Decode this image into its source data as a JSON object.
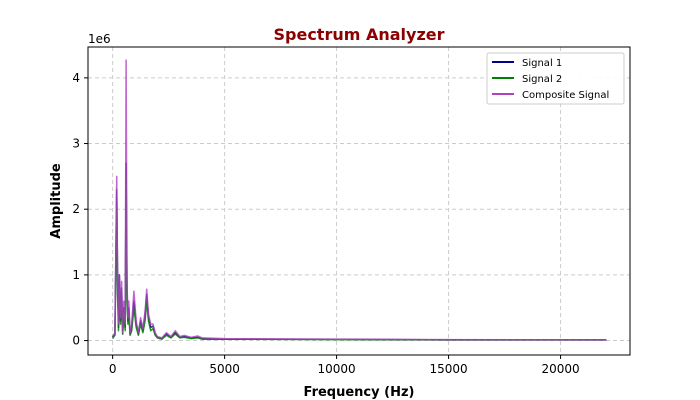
{
  "chart_data": {
    "type": "line",
    "title": "Spectrum Analyzer",
    "title_color": "#8b0000",
    "xlabel": "Frequency (Hz)",
    "ylabel": "Amplitude",
    "y_offset_text": "1e6",
    "xlim": [
      -1100,
      23100
    ],
    "ylim": [
      -0.22,
      4.47
    ],
    "y_scale_multiplier": 1000000,
    "x_ticks": [
      0,
      5000,
      10000,
      15000,
      20000
    ],
    "x_tick_labels": [
      "0",
      "5000",
      "10000",
      "15000",
      "20000"
    ],
    "y_ticks": [
      0,
      1,
      2,
      3,
      4
    ],
    "y_tick_labels": [
      "0",
      "1",
      "2",
      "3",
      "4"
    ],
    "grid": true,
    "legend_position": "top-right",
    "series": [
      {
        "name": "Signal 1",
        "color": "#00008b",
        "x": [
          0,
          100,
          180,
          220,
          260,
          300,
          350,
          400,
          450,
          500,
          560,
          600,
          640,
          680,
          720,
          780,
          850,
          950,
          1050,
          1150,
          1250,
          1350,
          1450,
          1520,
          1600,
          1700,
          1800,
          1900,
          2000,
          2200,
          2400,
          2600,
          2800,
          3000,
          3200,
          3500,
          3800,
          4000,
          5000,
          10000,
          15000,
          20000,
          22050
        ],
        "y": [
          0.05,
          0.1,
          2.3,
          0.9,
          0.2,
          1.0,
          0.3,
          0.8,
          0.1,
          0.5,
          0.2,
          2.7,
          0.8,
          0.3,
          0.5,
          0.1,
          0.2,
          0.6,
          0.25,
          0.1,
          0.3,
          0.15,
          0.4,
          0.7,
          0.35,
          0.2,
          0.22,
          0.1,
          0.05,
          0.03,
          0.1,
          0.05,
          0.12,
          0.05,
          0.06,
          0.04,
          0.05,
          0.03,
          0.02,
          0.02,
          0.01,
          0.01,
          0.01
        ]
      },
      {
        "name": "Signal 2",
        "color": "#008000",
        "x": [
          0,
          100,
          180,
          220,
          260,
          300,
          350,
          400,
          450,
          500,
          560,
          600,
          640,
          680,
          720,
          780,
          850,
          950,
          1050,
          1150,
          1250,
          1350,
          1450,
          1520,
          1600,
          1700,
          1800,
          1900,
          2000,
          2200,
          2400,
          2600,
          2800,
          3000,
          3200,
          3500,
          3800,
          4000,
          5000,
          10000,
          15000,
          20000,
          22050
        ],
        "y": [
          0.03,
          0.08,
          2.0,
          0.7,
          0.15,
          0.8,
          0.25,
          0.6,
          0.1,
          0.45,
          0.15,
          2.5,
          0.6,
          0.25,
          0.4,
          0.08,
          0.15,
          0.5,
          0.2,
          0.08,
          0.25,
          0.12,
          0.3,
          0.6,
          0.3,
          0.15,
          0.18,
          0.08,
          0.04,
          0.02,
          0.08,
          0.04,
          0.1,
          0.04,
          0.05,
          0.03,
          0.04,
          0.02,
          0.02,
          0.015,
          0.01,
          0.01,
          0.01
        ]
      },
      {
        "name": "Composite Signal",
        "color": "#b040c0",
        "x": [
          0,
          100,
          180,
          220,
          260,
          300,
          350,
          400,
          450,
          500,
          560,
          600,
          640,
          680,
          720,
          780,
          850,
          950,
          1050,
          1150,
          1250,
          1350,
          1450,
          1520,
          1600,
          1700,
          1800,
          1900,
          2000,
          2200,
          2400,
          2600,
          2800,
          3000,
          3200,
          3500,
          3800,
          4000,
          5000,
          10000,
          15000,
          20000,
          22050
        ],
        "y": [
          0.06,
          0.12,
          2.5,
          1.0,
          0.25,
          1.0,
          0.35,
          0.9,
          0.12,
          0.6,
          0.25,
          4.27,
          0.9,
          0.35,
          0.6,
          0.12,
          0.25,
          0.75,
          0.3,
          0.12,
          0.35,
          0.18,
          0.45,
          0.78,
          0.4,
          0.25,
          0.25,
          0.12,
          0.06,
          0.04,
          0.12,
          0.06,
          0.15,
          0.06,
          0.08,
          0.05,
          0.07,
          0.04,
          0.03,
          0.02,
          0.015,
          0.012,
          0.01
        ]
      }
    ]
  }
}
